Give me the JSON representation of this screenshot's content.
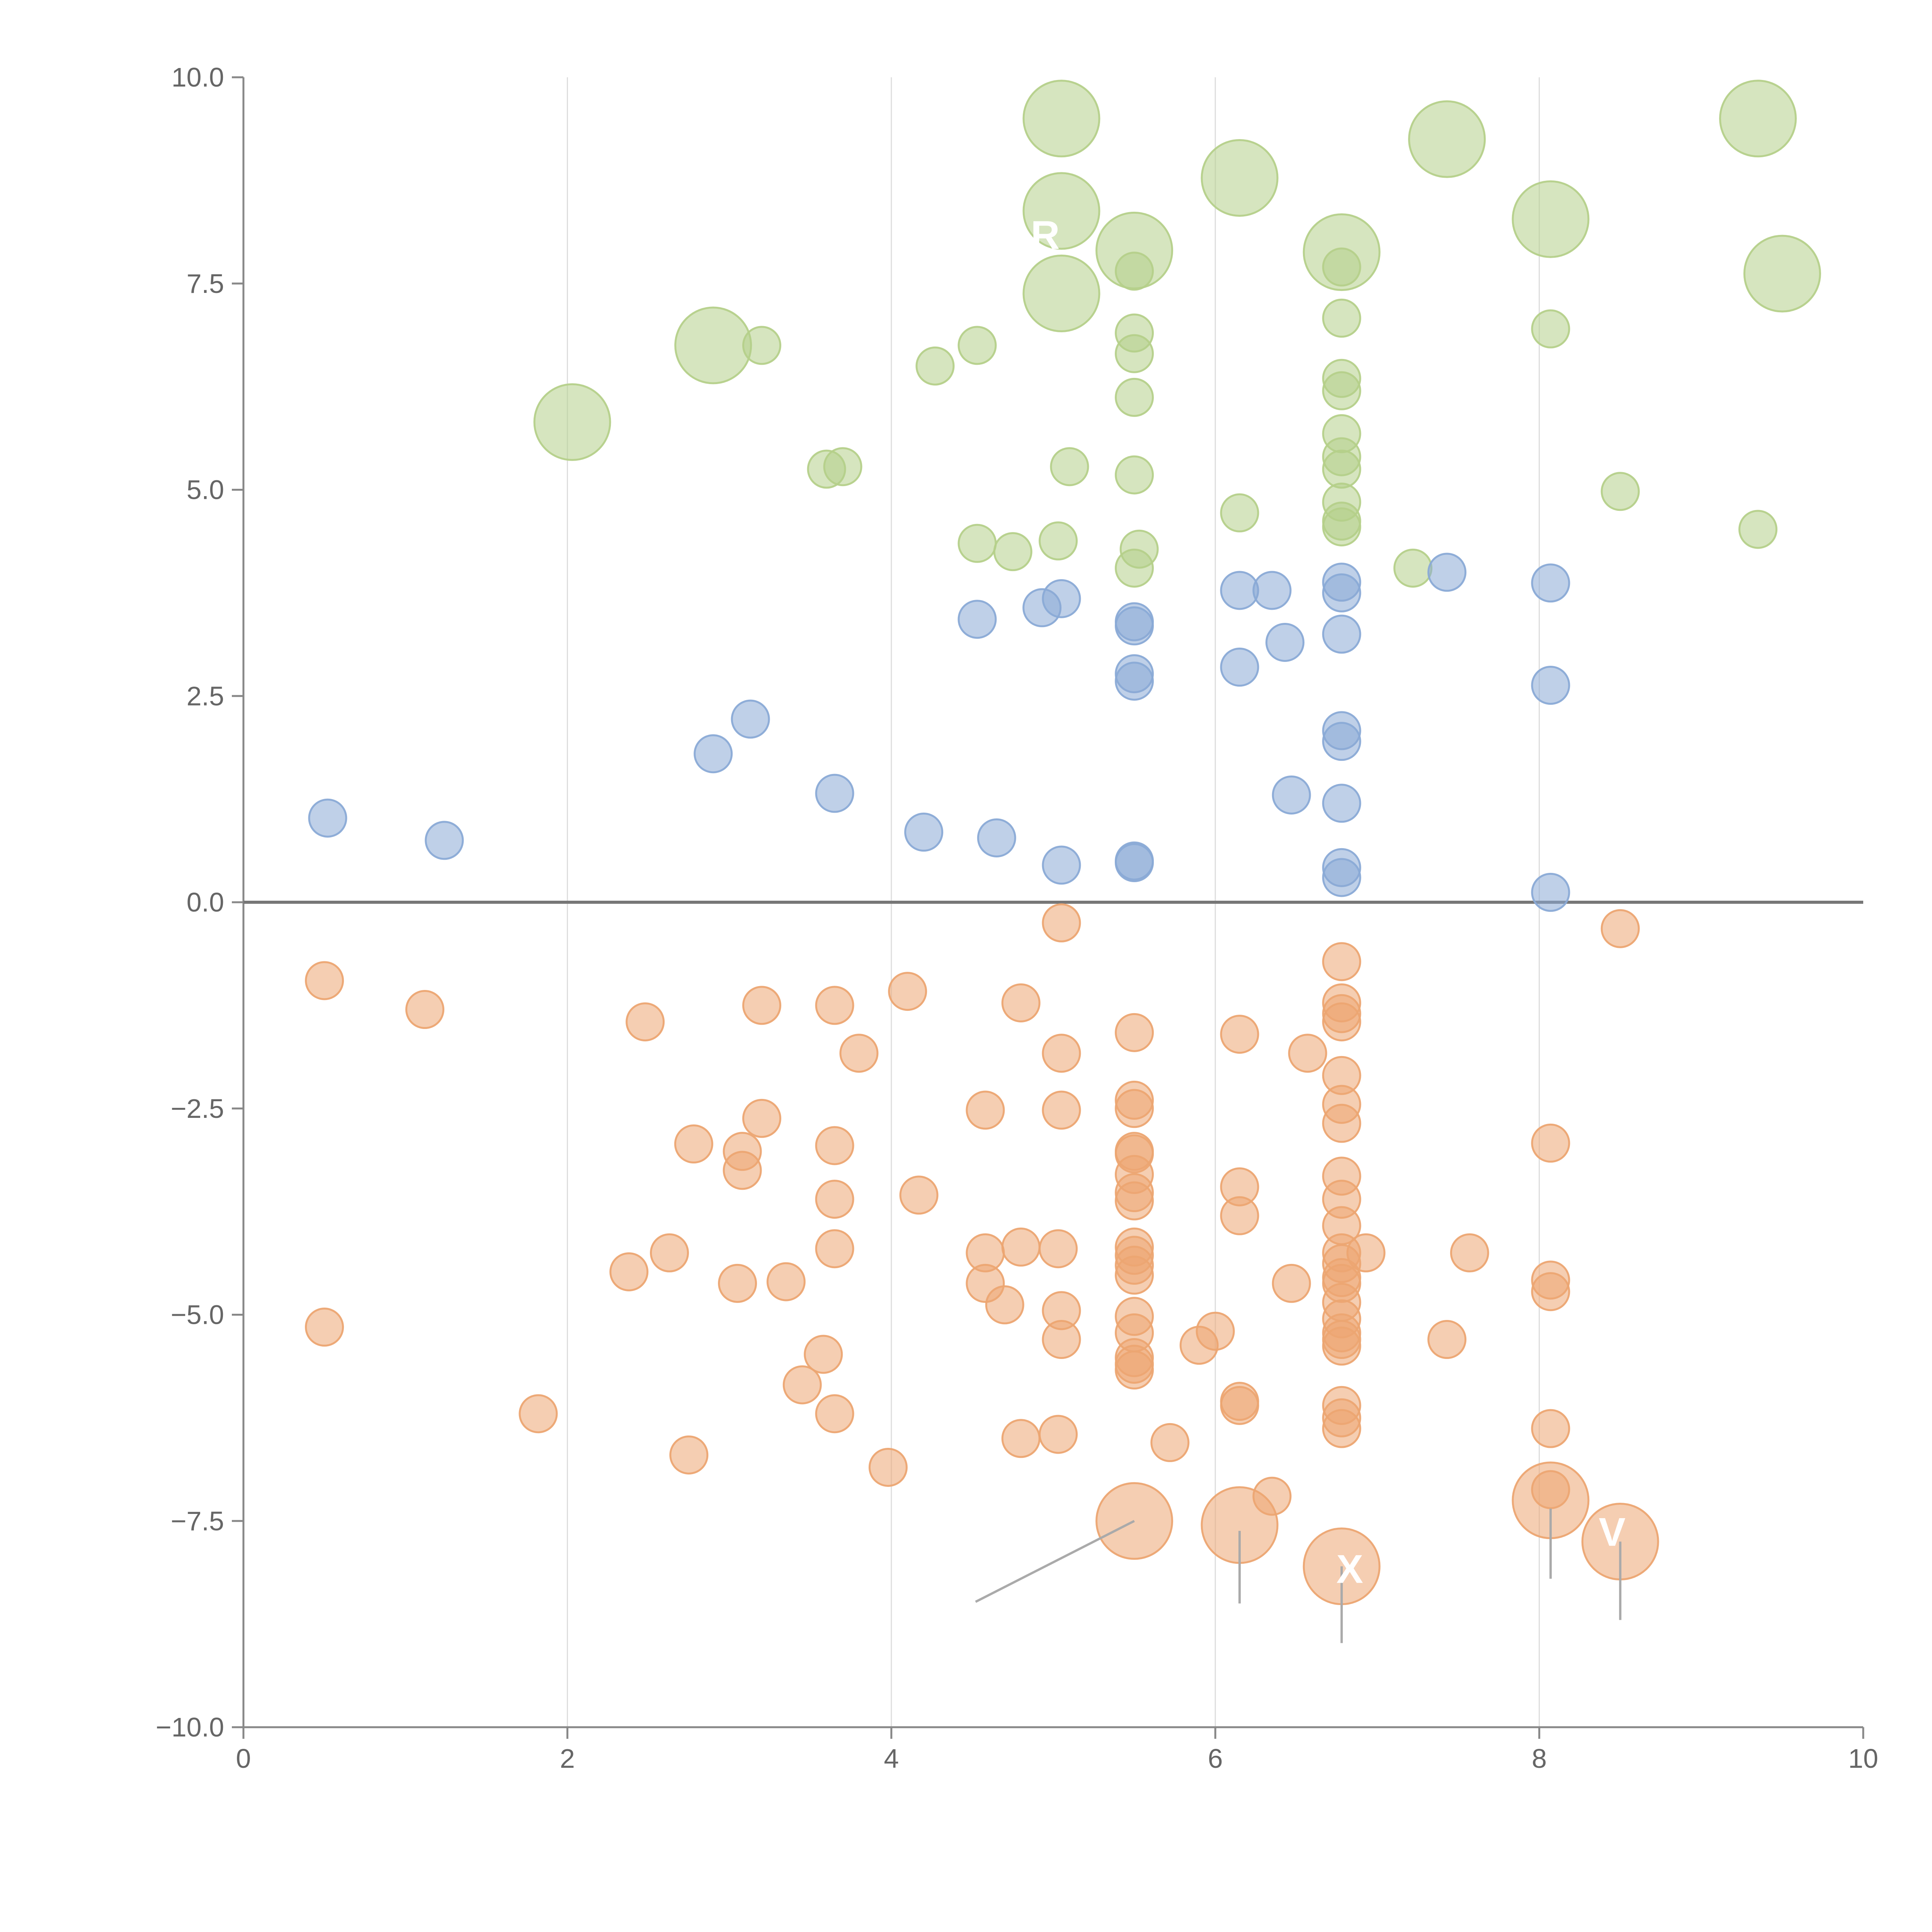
{
  "chart_data": {
    "type": "scatter",
    "title": "",
    "xlabel": "",
    "ylabel": "",
    "xlim": [
      0,
      10
    ],
    "ylim": [
      -10,
      10
    ],
    "x_ticks": [
      0,
      2,
      4,
      6,
      8,
      10
    ],
    "x_tick_labels": [
      "0",
      "2",
      "4",
      "6",
      "8",
      "10"
    ],
    "y_ticks": [
      -10,
      -7.5,
      -5,
      -2.5,
      0,
      2.5,
      5,
      7.5,
      10
    ],
    "y_tick_labels": [
      "−10.0",
      "−7.5",
      "−5.0",
      "−2.5",
      "0.0",
      "2.5",
      "5.0",
      "7.5",
      "10.0"
    ],
    "vertical_gridlines": [
      2,
      4,
      6,
      8
    ],
    "zero_line": 0,
    "colors": {
      "green": "#b5d08a",
      "blue": "#8aaad6",
      "orange": "#eca572",
      "axis": "#888888",
      "zero_line": "#777777",
      "grid": "#dddddd",
      "callout_line": "#aaaaaa"
    },
    "series": [
      {
        "name": "green",
        "color": "#b5d08a",
        "points": [
          [
            5.05,
            9.5,
            2
          ],
          [
            6.15,
            8.78,
            2
          ],
          [
            7.43,
            9.25,
            2
          ],
          [
            9.35,
            9.5,
            2
          ],
          [
            5.05,
            8.38,
            2
          ],
          [
            5.5,
            7.9,
            2
          ],
          [
            6.78,
            7.88,
            2
          ],
          [
            8.07,
            8.28,
            2
          ],
          [
            9.5,
            7.62,
            2
          ],
          [
            5.05,
            7.38,
            2
          ],
          [
            2.9,
            6.75,
            2
          ],
          [
            2.03,
            5.82,
            2
          ],
          [
            5.5,
            7.65,
            1
          ],
          [
            6.78,
            7.7,
            1
          ],
          [
            6.78,
            7.08,
            1
          ],
          [
            3.2,
            6.75,
            1
          ],
          [
            4.27,
            6.5,
            1
          ],
          [
            4.53,
            6.75,
            1
          ],
          [
            5.5,
            6.9,
            1
          ],
          [
            5.5,
            6.65,
            1
          ],
          [
            6.78,
            6.35,
            1
          ],
          [
            6.78,
            6.2,
            1
          ],
          [
            5.5,
            6.12,
            1
          ],
          [
            8.07,
            6.95,
            1
          ],
          [
            3.6,
            5.25,
            1
          ],
          [
            3.7,
            5.28,
            1
          ],
          [
            5.1,
            5.28,
            1
          ],
          [
            5.5,
            5.18,
            1
          ],
          [
            6.78,
            5.68,
            1
          ],
          [
            6.78,
            5.4,
            1
          ],
          [
            6.78,
            5.25,
            1
          ],
          [
            8.5,
            4.98,
            1
          ],
          [
            6.15,
            4.72,
            1
          ],
          [
            6.78,
            4.85,
            1
          ],
          [
            6.78,
            4.62,
            1
          ],
          [
            6.78,
            4.55,
            1
          ],
          [
            4.53,
            4.35,
            1
          ],
          [
            4.75,
            4.25,
            1
          ],
          [
            5.03,
            4.38,
            1
          ],
          [
            5.53,
            4.28,
            1
          ],
          [
            5.5,
            4.05,
            1
          ],
          [
            7.22,
            4.05,
            1
          ],
          [
            9.35,
            4.52,
            1
          ]
        ]
      },
      {
        "name": "blue",
        "color": "#8aaad6",
        "points": [
          [
            0.52,
            1.02,
            1
          ],
          [
            1.24,
            0.75,
            1
          ],
          [
            2.9,
            1.8,
            1
          ],
          [
            3.13,
            2.22,
            1
          ],
          [
            3.65,
            1.32,
            1
          ],
          [
            4.2,
            0.85,
            1
          ],
          [
            4.65,
            0.78,
            1
          ],
          [
            5.05,
            0.45,
            1
          ],
          [
            5.5,
            0.5,
            1
          ],
          [
            5.5,
            0.48,
            1
          ],
          [
            4.53,
            3.43,
            1
          ],
          [
            4.93,
            3.57,
            1
          ],
          [
            5.05,
            3.68,
            1
          ],
          [
            5.5,
            3.4,
            1
          ],
          [
            5.5,
            3.35,
            1
          ],
          [
            5.5,
            2.77,
            1
          ],
          [
            5.5,
            2.68,
            1
          ],
          [
            6.15,
            3.78,
            1
          ],
          [
            6.35,
            3.78,
            1
          ],
          [
            6.15,
            2.85,
            1
          ],
          [
            6.43,
            3.15,
            1
          ],
          [
            6.47,
            1.3,
            1
          ],
          [
            6.78,
            3.88,
            1
          ],
          [
            6.78,
            3.75,
            1
          ],
          [
            6.78,
            3.25,
            1
          ],
          [
            6.78,
            2.08,
            1
          ],
          [
            6.78,
            1.95,
            1
          ],
          [
            6.78,
            1.2,
            1
          ],
          [
            6.78,
            0.42,
            1
          ],
          [
            6.78,
            0.3,
            1
          ],
          [
            7.43,
            4.0,
            1
          ],
          [
            8.07,
            3.87,
            1
          ],
          [
            8.07,
            2.63,
            1
          ],
          [
            8.07,
            0.12,
            1
          ]
        ]
      },
      {
        "name": "orange",
        "color": "#eca572",
        "points": [
          [
            5.05,
            -0.25,
            1
          ],
          [
            8.5,
            -0.32,
            1
          ],
          [
            0.5,
            -0.95,
            1
          ],
          [
            1.12,
            -1.3,
            1
          ],
          [
            2.48,
            -1.45,
            1
          ],
          [
            3.2,
            -1.25,
            1
          ],
          [
            3.65,
            -1.25,
            1
          ],
          [
            4.1,
            -1.08,
            1
          ],
          [
            4.8,
            -1.22,
            1
          ],
          [
            3.8,
            -1.83,
            1
          ],
          [
            5.05,
            -1.83,
            1
          ],
          [
            5.5,
            -1.58,
            1
          ],
          [
            6.15,
            -1.6,
            1
          ],
          [
            6.57,
            -1.83,
            1
          ],
          [
            6.78,
            -0.72,
            1
          ],
          [
            6.78,
            -1.22,
            1
          ],
          [
            6.78,
            -1.35,
            1
          ],
          [
            6.78,
            -1.45,
            1
          ],
          [
            6.78,
            -2.1,
            1
          ],
          [
            6.78,
            -2.45,
            1
          ],
          [
            6.78,
            -2.68,
            1
          ],
          [
            4.58,
            -2.52,
            1
          ],
          [
            5.05,
            -2.52,
            1
          ],
          [
            5.5,
            -2.4,
            1
          ],
          [
            5.5,
            -2.5,
            1
          ],
          [
            5.5,
            -3.02,
            1
          ],
          [
            5.5,
            -3.05,
            1
          ],
          [
            5.5,
            -3.3,
            1
          ],
          [
            5.5,
            -3.52,
            1
          ],
          [
            5.5,
            -3.62,
            1
          ],
          [
            2.78,
            -2.93,
            1
          ],
          [
            3.08,
            -3.02,
            1
          ],
          [
            3.08,
            -3.25,
            1
          ],
          [
            3.2,
            -2.62,
            1
          ],
          [
            3.65,
            -2.95,
            1
          ],
          [
            3.65,
            -3.6,
            1
          ],
          [
            4.17,
            -3.55,
            1
          ],
          [
            6.15,
            -3.45,
            1
          ],
          [
            6.15,
            -3.8,
            1
          ],
          [
            6.78,
            -3.32,
            1
          ],
          [
            6.78,
            -3.6,
            1
          ],
          [
            6.78,
            -3.92,
            1
          ],
          [
            8.07,
            -2.92,
            1
          ],
          [
            2.38,
            -4.48,
            1
          ],
          [
            2.63,
            -4.25,
            1
          ],
          [
            3.05,
            -4.62,
            1
          ],
          [
            3.35,
            -4.6,
            1
          ],
          [
            3.65,
            -4.2,
            1
          ],
          [
            4.58,
            -4.25,
            1
          ],
          [
            4.58,
            -4.62,
            1
          ],
          [
            4.8,
            -4.18,
            1
          ],
          [
            5.03,
            -4.2,
            1
          ],
          [
            5.5,
            -4.18,
            1
          ],
          [
            5.5,
            -4.28,
            1
          ],
          [
            5.5,
            -4.4,
            1
          ],
          [
            5.5,
            -4.52,
            1
          ],
          [
            6.47,
            -4.62,
            1
          ],
          [
            6.78,
            -4.25,
            1
          ],
          [
            6.78,
            -4.38,
            1
          ],
          [
            6.78,
            -4.55,
            1
          ],
          [
            6.78,
            -4.62,
            1
          ],
          [
            6.78,
            -4.85,
            1
          ],
          [
            6.93,
            -4.25,
            1
          ],
          [
            7.57,
            -4.25,
            1
          ],
          [
            8.07,
            -4.58,
            1
          ],
          [
            8.07,
            -4.72,
            1
          ],
          [
            0.5,
            -5.15,
            1
          ],
          [
            3.58,
            -5.48,
            1
          ],
          [
            3.45,
            -5.85,
            1
          ],
          [
            4.7,
            -4.88,
            1
          ],
          [
            5.05,
            -4.95,
            1
          ],
          [
            5.05,
            -5.3,
            1
          ],
          [
            5.5,
            -5.02,
            1
          ],
          [
            5.5,
            -5.22,
            1
          ],
          [
            5.5,
            -5.52,
            1
          ],
          [
            5.5,
            -5.6,
            1
          ],
          [
            5.5,
            -5.67,
            1
          ],
          [
            5.9,
            -5.37,
            1
          ],
          [
            6.0,
            -5.2,
            1
          ],
          [
            6.78,
            -5.05,
            1
          ],
          [
            6.78,
            -5.22,
            1
          ],
          [
            6.78,
            -5.3,
            1
          ],
          [
            6.78,
            -5.38,
            1
          ],
          [
            7.43,
            -5.3,
            1
          ],
          [
            1.82,
            -6.2,
            1
          ],
          [
            2.75,
            -6.7,
            1
          ],
          [
            3.65,
            -6.2,
            1
          ],
          [
            3.98,
            -6.85,
            1
          ],
          [
            4.8,
            -6.5,
            1
          ],
          [
            5.03,
            -6.45,
            1
          ],
          [
            5.72,
            -6.55,
            1
          ],
          [
            6.15,
            -6.05,
            1
          ],
          [
            6.15,
            -6.1,
            1
          ],
          [
            6.78,
            -6.1,
            1
          ],
          [
            6.78,
            -6.25,
            1
          ],
          [
            6.78,
            -6.38,
            1
          ],
          [
            8.07,
            -6.38,
            1
          ],
          [
            8.07,
            -7.12,
            1
          ],
          [
            6.35,
            -7.2,
            1
          ],
          [
            5.5,
            -7.5,
            2
          ],
          [
            6.15,
            -7.55,
            2
          ],
          [
            6.78,
            -8.05,
            2
          ],
          [
            8.07,
            -7.25,
            2
          ],
          [
            8.5,
            -7.75,
            2
          ]
        ]
      }
    ],
    "annotations": [
      {
        "text": "R",
        "color": "#ffffff",
        "x": 4.95,
        "y": 7.92
      },
      {
        "text": "X",
        "color": "#ffffff",
        "x": 6.83,
        "y": -8.25
      },
      {
        "text": "V",
        "color": "#ffffff",
        "x": 8.45,
        "y": -7.8
      }
    ],
    "callout_lines": [
      {
        "from": [
          5.5,
          -7.5
        ],
        "to": [
          4.52,
          -8.48
        ]
      },
      {
        "from": [
          6.15,
          -7.62
        ],
        "to": [
          6.15,
          -8.5
        ]
      },
      {
        "from": [
          6.78,
          -8.05
        ],
        "to": [
          6.78,
          -8.98
        ]
      },
      {
        "from": [
          8.07,
          -7.35
        ],
        "to": [
          8.07,
          -8.2
        ]
      },
      {
        "from": [
          8.5,
          -7.75
        ],
        "to": [
          8.5,
          -8.7
        ]
      }
    ]
  }
}
